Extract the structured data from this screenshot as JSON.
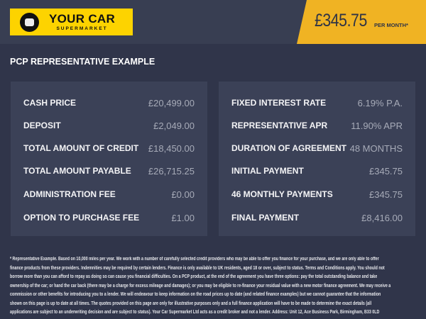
{
  "header": {
    "logo_main": "YOUR CAR",
    "logo_sub": "SUPERMARKET",
    "price": "£345.75",
    "per_month": "PER MONTH*",
    "banner_color": "#f0b323",
    "logo_color": "#fdd300"
  },
  "title": "PCP REPRESENTATIVE EXAMPLE",
  "left": [
    {
      "label": "CASH PRICE",
      "value": "£20,499.00"
    },
    {
      "label": "DEPOSIT",
      "value": "£2,049.00"
    },
    {
      "label": "TOTAL AMOUNT OF CREDIT",
      "value": "£18,450.00"
    },
    {
      "label": "TOTAL AMOUNT PAYABLE",
      "value": "£26,715.25"
    },
    {
      "label": "ADMINISTRATION FEE",
      "value": "£0.00"
    },
    {
      "label": "OPTION TO PURCHASE FEE",
      "value": "£1.00"
    }
  ],
  "right": [
    {
      "label": "FIXED INTEREST RATE",
      "value": "6.19% P.A."
    },
    {
      "label": "REPRESENTATIVE APR",
      "value": "11.90% APR"
    },
    {
      "label": "DURATION OF AGREEMENT",
      "value": "48 MONTHS"
    },
    {
      "label": "INITIAL PAYMENT",
      "value": "£345.75"
    },
    {
      "label": "46 MONTHLY PAYMENTS",
      "value": "£345.75"
    },
    {
      "label": "FINAL PAYMENT",
      "value": "£8,416.00"
    }
  ],
  "footnote": "* Representative Example. Based on 10,000 miles per year. We work with a number of carefully selected credit providers who may be able to offer you finance for your purchase, and we are only able to offer finance products from these providers. Indemnities may be required by certain lenders. Finance is only available to UK residents, aged 18 or over, subject to status. Terms and Conditions apply. You should not borrow more than you can afford to repay as doing so can cause you financial difficulties. On a PCP product, at the end of the agreement you have three options: pay the total outstanding balance and take ownership of the car; or hand the car back (there may be a charge for excess mileage and damages); or you may be eligible to re-finance your residual value with a new motor finance agreement. We may receive a commission or other benefits for introducing you to a lender. We will endeavour to keep information on the road prices up to date (and related finance examples) but we cannot guarantee that the information shown on this page is up to date at all times. The quotes provided on this page are only for illustrative purposes only and a full finance application will have to be made to determine the exact details (all applications are subject to an underwriting decision and are subject to status). Your Car Supermarket Ltd acts as a credit broker and not a lender. Address: Unit 12, Ace Business Park, Birmingham, B33 0LD"
}
